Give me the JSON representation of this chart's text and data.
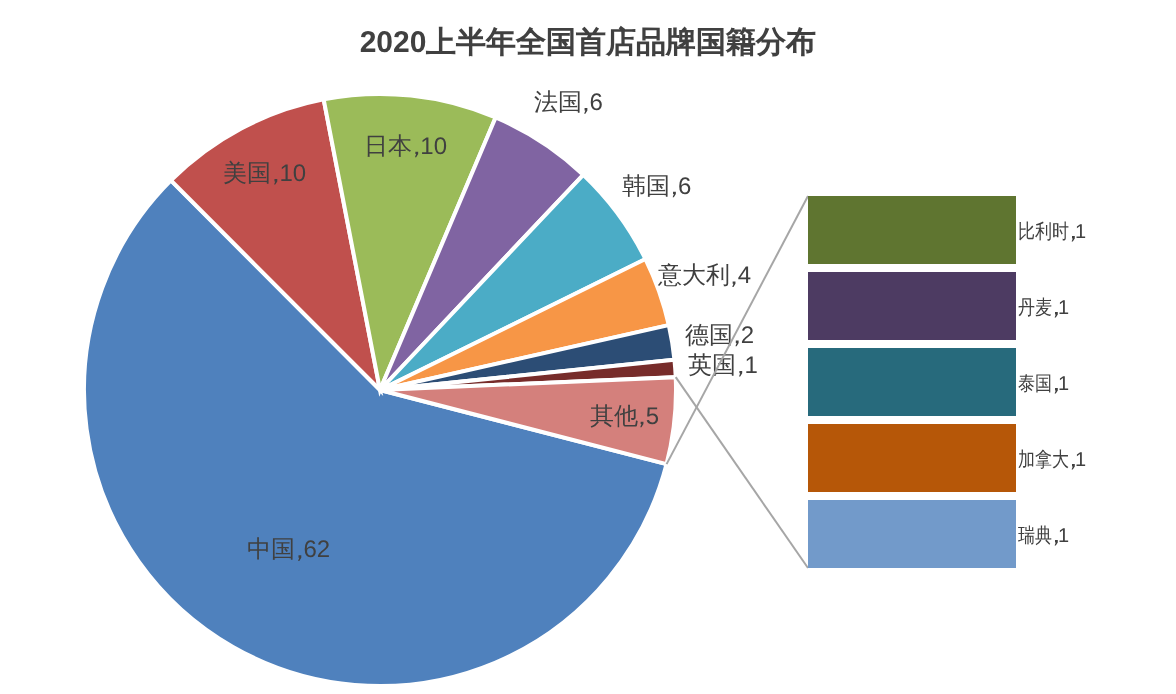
{
  "chart_data": [
    {
      "type": "pie",
      "title": "2020上半年全国首店品牌国籍分布",
      "categories": [
        "中国",
        "美国",
        "日本",
        "法国",
        "韩国",
        "意大利",
        "德国",
        "英国",
        "其他"
      ],
      "values": [
        62,
        10,
        10,
        6,
        6,
        4,
        2,
        1,
        5
      ],
      "colors": [
        "#4f81bd",
        "#c0504d",
        "#9bbb59",
        "#8064a2",
        "#4bacc6",
        "#f79646",
        "#2c4d75",
        "#772c2a",
        "#d4807c"
      ],
      "data_labels": true
    },
    {
      "type": "bar",
      "orientation": "horizontal",
      "categories": [
        "比利时",
        "丹麦",
        "泰国",
        "加拿大",
        "瑞典"
      ],
      "values": [
        1,
        1,
        1,
        1,
        1
      ],
      "colors": [
        "#5f7530",
        "#4d3b62",
        "#276a7c",
        "#b65708",
        "#729aca"
      ],
      "data_labels": true
    }
  ]
}
